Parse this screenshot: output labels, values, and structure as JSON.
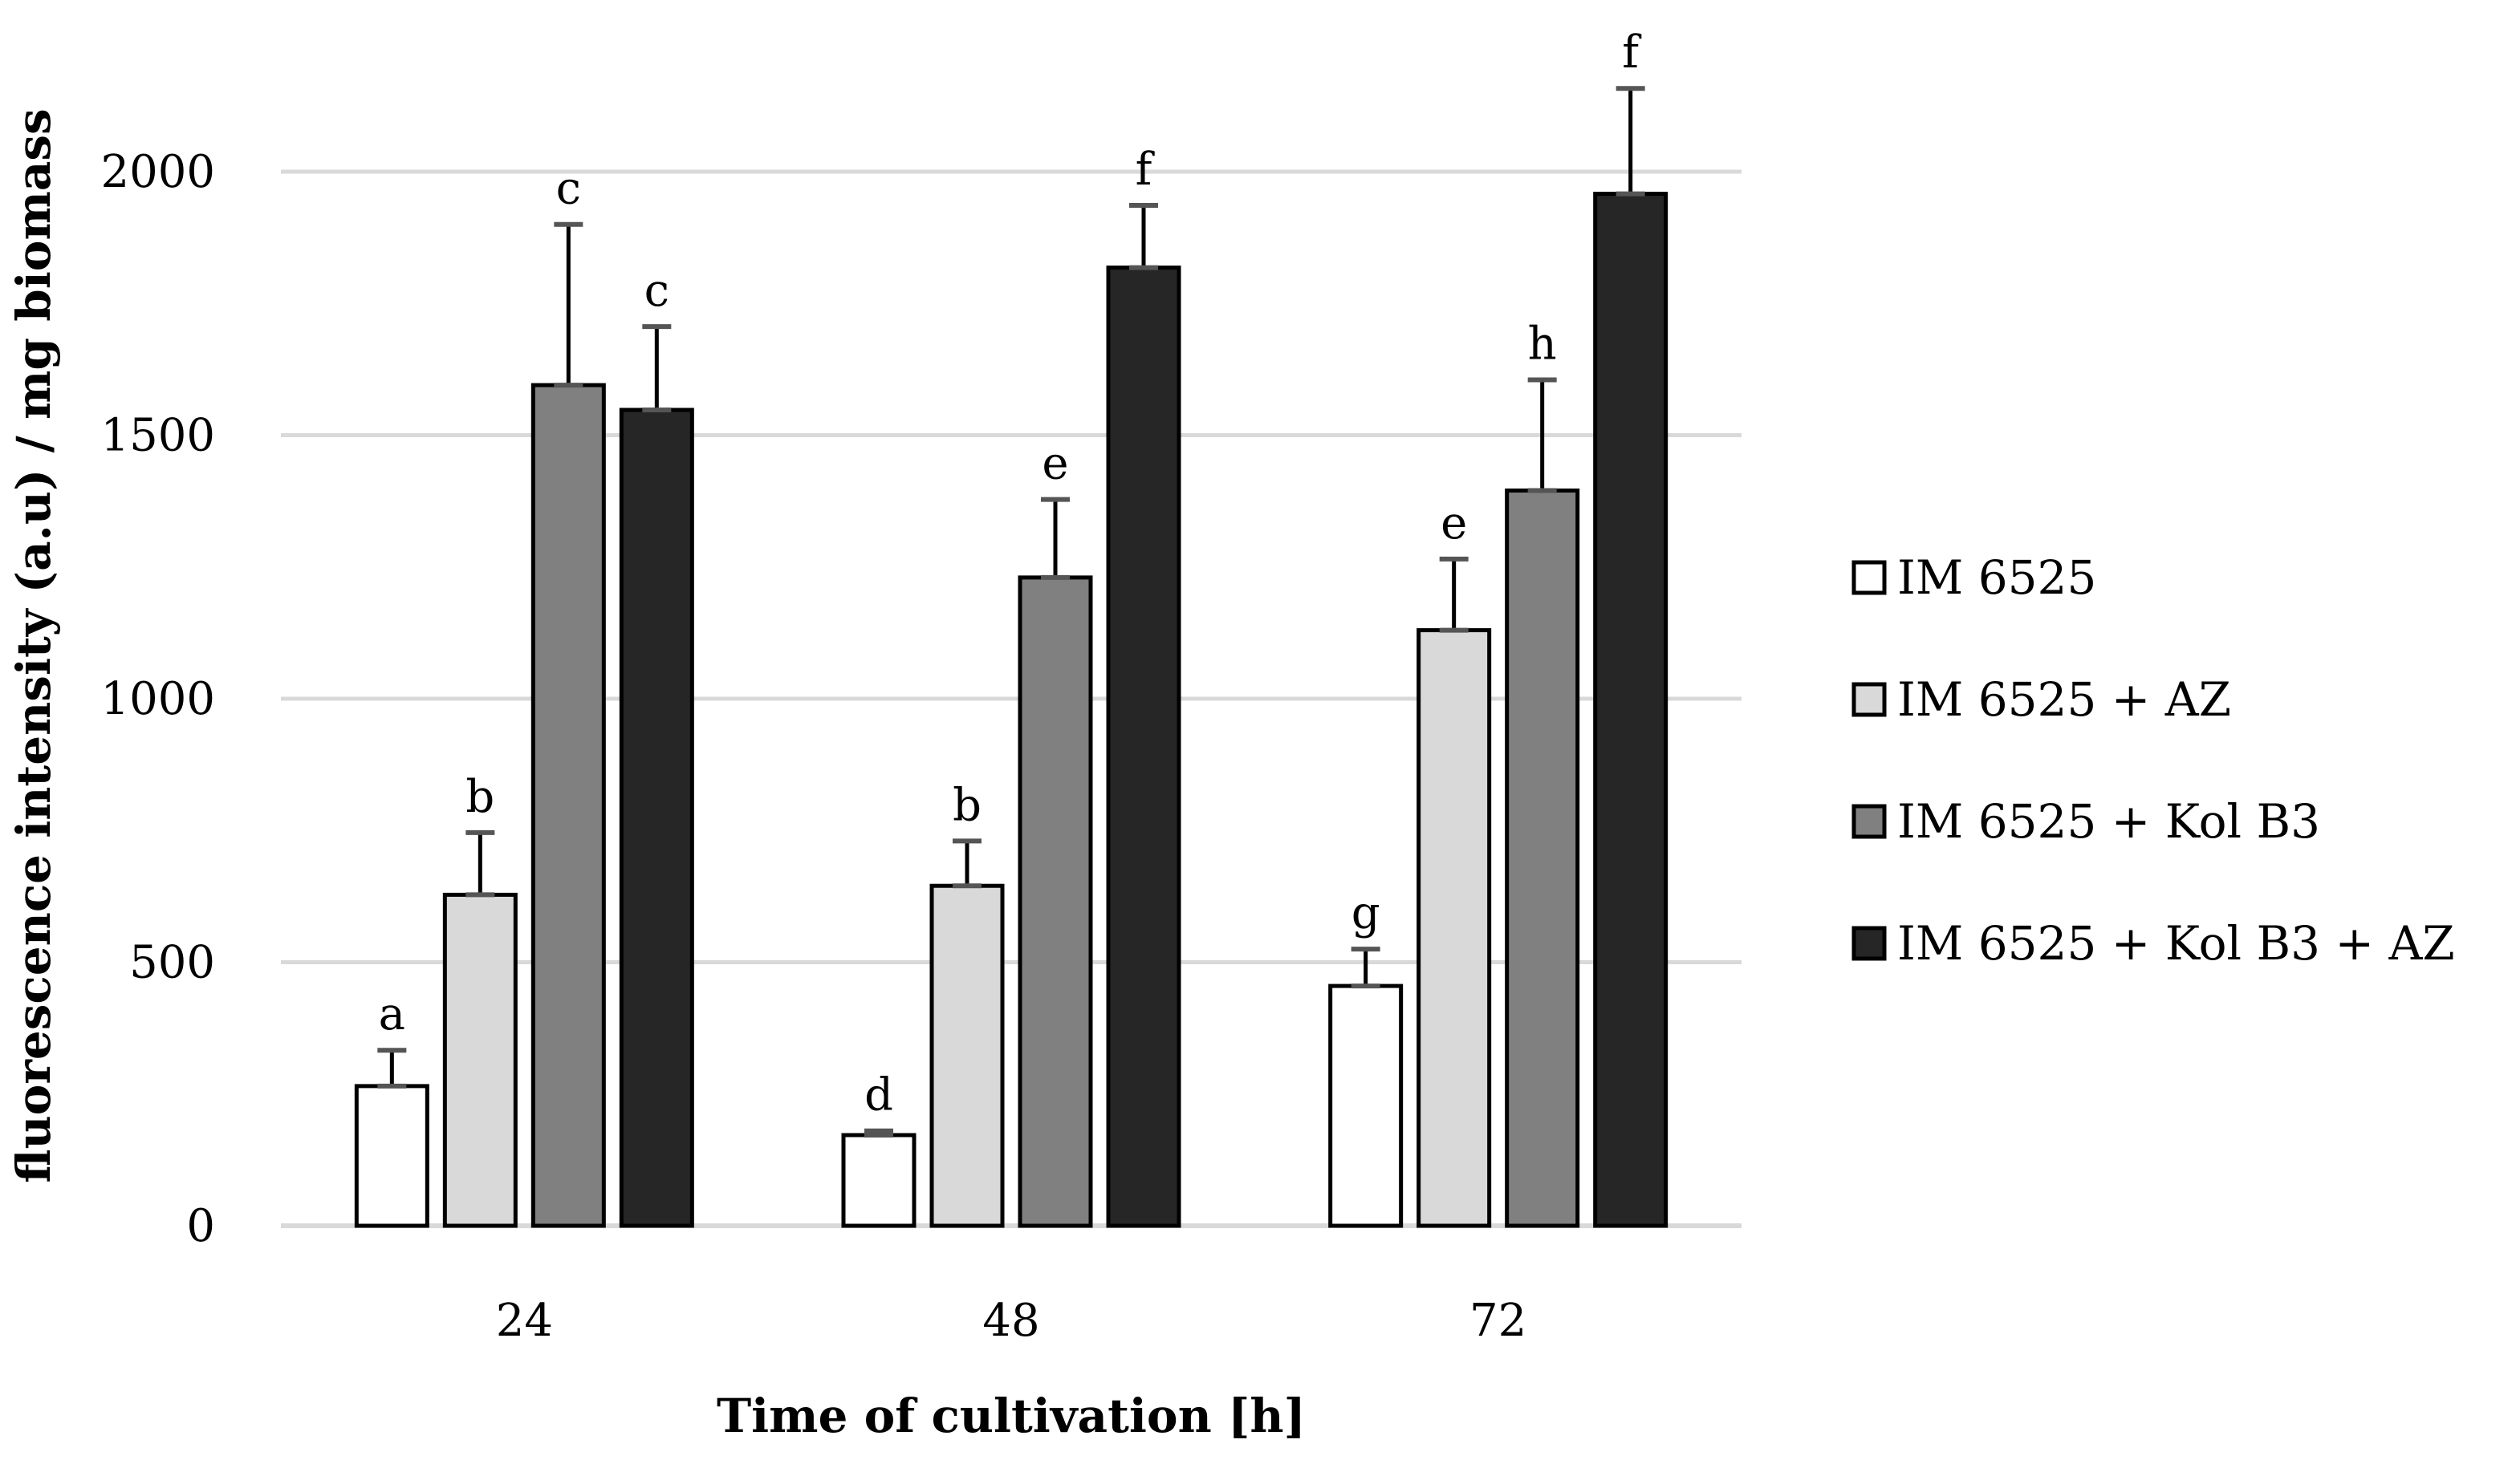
{
  "chart_data": {
    "type": "bar",
    "title": "",
    "xlabel": "Time of cultivation [h]",
    "ylabel": "fluorescence intensity (a.u) / mg biomass",
    "categories": [
      "24",
      "48",
      "72"
    ],
    "ylim": [
      0,
      2000
    ],
    "yticks": [
      0,
      500,
      1000,
      1500,
      2000
    ],
    "grid": true,
    "legend_position": "right",
    "series": [
      {
        "name": "IM 6525",
        "color": "#ffffff",
        "values": [
          265,
          172,
          455
        ],
        "errors": [
          68,
          8,
          70
        ],
        "letters": [
          "a",
          "d",
          "g"
        ]
      },
      {
        "name": "IM 6525 + AZ",
        "color": "#d9d9d9",
        "values": [
          628,
          645,
          1130
        ],
        "errors": [
          118,
          85,
          135
        ],
        "letters": [
          "b",
          "b",
          "e"
        ]
      },
      {
        "name": "IM 6525 + Kol B3",
        "color": "#808080",
        "values": [
          1595,
          1230,
          1395
        ],
        "errors": [
          305,
          148,
          210
        ],
        "letters": [
          "c",
          "e",
          "h"
        ]
      },
      {
        "name": "IM 6525 + Kol B3 + AZ",
        "color": "#262626",
        "values": [
          1548,
          1818,
          1958
        ],
        "errors": [
          158,
          118,
          200
        ],
        "letters": [
          "c",
          "f",
          "f"
        ]
      }
    ]
  }
}
